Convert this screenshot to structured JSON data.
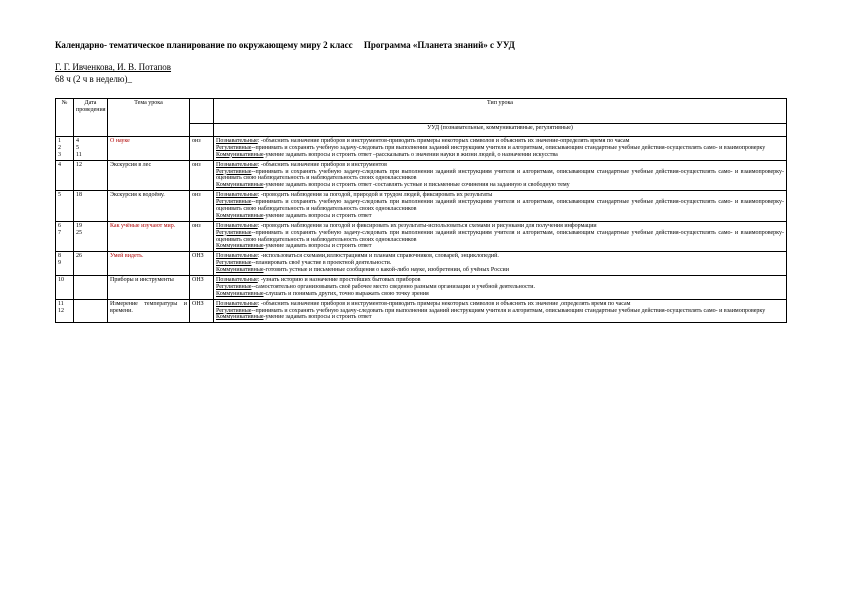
{
  "header": {
    "title_left": "Календарно- тематическое планирование по окружающему миру 2 класс",
    "title_right": "Программа «Планета знаний» с УУД",
    "authors": "Г. Г. Ивченкова, И. В. Потапов",
    "hours": "68 ч (2 ч в неделю)_"
  },
  "thead": {
    "num": "№",
    "date": "Дата проведения",
    "topic": "Тема урока",
    "lesson_type": "Тип урока",
    "uud": "УУД (познавательные, коммуникативные, регулятивные)"
  },
  "labels": {
    "poz": "Познавательные",
    "reg": "Регулятивные",
    "kom": "Коммуникативные"
  },
  "rows": [
    {
      "nums": "1\n2\n3",
      "date": "4\n5\n11",
      "topic": "О науке",
      "topic_red": true,
      "type": "онз",
      "poz": "-объяснить назначение приборов и инструментов-приводить примеры некоторых символов и объяснять их значение-определять время по часам",
      "reg": "-принимать и сохранять учебную задачу-следовать при выполнении заданий инструкциям учителя и алгоритмам, описывающим стандартные учебные действия-осуществлять само- и взаимопроверку",
      "kom": "-умение задавать вопросы и строить ответ –рассказывать о значении науки в жизни людей, о назначении искусства"
    },
    {
      "nums": "4",
      "date": "12",
      "topic": "Экскурсия в лес",
      "topic_red": false,
      "type": "онз",
      "poz": "-объяснить назначение приборов и инструментов",
      "reg": "-принимать и сохранять учебную задачу-следовать при выполнении заданий инструкциям учителя и алгоритмам, описывающим стандартные учебные действия-осуществлять само- и взаимопроверку-оценивать свою наблюдательность и наблюдательность своих одноклассников",
      "kom": "-умение задавать вопросы и строить ответ -составлять устные и письменные сочинения на заданную и свободную тему"
    },
    {
      "nums": "5",
      "date": "18",
      "topic": "Экскурсия к водоёму.",
      "topic_red": false,
      "type": "онз",
      "poz": "-проводить наблюдения за погодой, природой и трудом людей, фиксировать их результаты",
      "reg": "-принимать и сохранять учебную задачу-следовать при выполнении заданий инструкциям учителя и алгоритмам, описывающим стандартные учебные действия-осуществлять само- и взаимопроверку-оценивать свою наблюдательность и наблюдательность своих одноклассников",
      "kom": "-умение задавать вопросы и строить ответ"
    },
    {
      "nums": "6\n7",
      "date": "19\n25",
      "topic": "Как учёные изучают мир.",
      "topic_red": true,
      "type": "онз",
      "poz": "-проводить наблюдения за погодой и фиксировать их результаты-использоваться схемами и рисунками для получения информации",
      "reg": "-принимать и сохранять учебную задачу-следовать при выполнении заданий инструкциям учителя и алгоритмам, описывающим стандартные учебные действия-осуществлять само- и взаимопроверку-оценивать свою наблюдательность и наблюдательность своих одноклассников",
      "kom": "-умение задавать вопросы и строить ответ"
    },
    {
      "nums": "8\n9",
      "date": "26",
      "topic": "Умей видеть.",
      "topic_red": true,
      "type": "ОНЗ",
      "poz": "-использоваться схемами,иллюстрациями и планами справочников, словарей, энциклопедий.",
      "reg": "-планировать своё участие в проектной деятельности.",
      "kom": "-готовить устные и письменные сообщения о какой-либо науке, изобретении, об учёных России"
    },
    {
      "nums": "10",
      "date": "",
      "topic": "Приборы и инструменты",
      "topic_red": false,
      "type": "ОНЗ",
      "poz": "-узнать историю и назначение простейших бытовых приборов",
      "reg": "-самостоятельно организовывать своё рабочее место сведенно разными организации и учебной деятельности.",
      "kom": "-слушать и понимать других, точно выражать свою точку зрения"
    },
    {
      "nums": "11\n12",
      "date": "",
      "topic": "Измерение температуры и времени.",
      "topic_red": false,
      "type": "ОНЗ",
      "poz": "-объяснить назначение приборов и инструментов-приводить примеры некоторых символов и объяснять их значение ,определять время по часам",
      "reg": "-принимать и сохранять учебную задачу-следовать при выполнении заданий инструкциям учителя и алгоритмам, описывающим стандартные учебные действия-осуществлять само- и взаимопроверку",
      "kom": "-умение задавать вопросы и строить ответ"
    }
  ]
}
